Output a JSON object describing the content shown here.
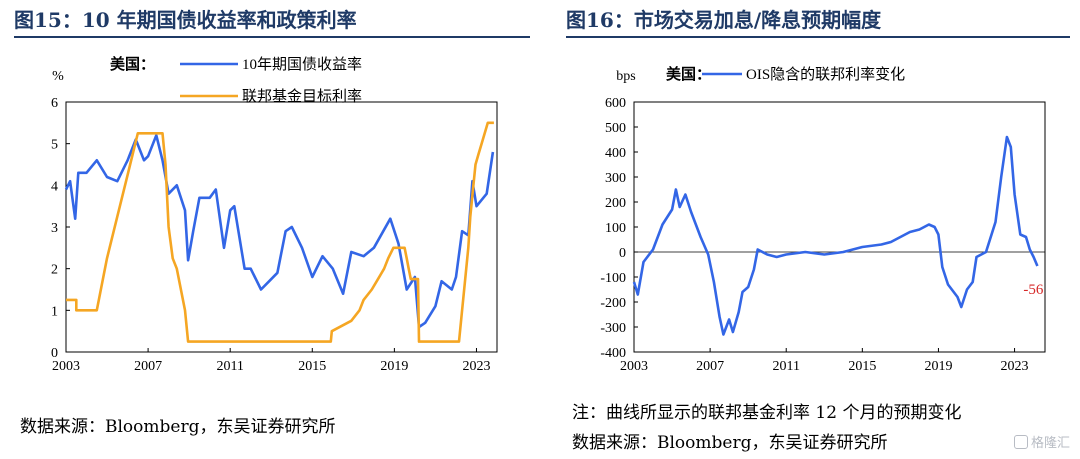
{
  "left": {
    "figure_title": "图15：10 年期国债收益率和政策利率",
    "source": "数据来源：Bloomberg，东吴证券研究所"
  },
  "right": {
    "figure_title": "图16：市场交易加息/降息预期幅度",
    "note": "注：曲线所显示的联邦基金利率 12 个月的预期变化",
    "source": "数据来源：Bloomberg，东吴证券研究所"
  },
  "watermark": "格隆汇",
  "chart_data": [
    {
      "type": "line",
      "ylabel": "%",
      "legend_prefix": "美国：",
      "legend_position": "top",
      "ylim": [
        0,
        6
      ],
      "yticks": [
        "0",
        "1",
        "2",
        "3",
        "4",
        "5",
        "6"
      ],
      "xlim": [
        2003,
        2024
      ],
      "xticks": [
        "2003",
        "2007",
        "2011",
        "2015",
        "2019",
        "2023"
      ],
      "grid": false,
      "series": [
        {
          "name": "10年期国债收益率",
          "color": "#3366e6",
          "points": [
            [
              2003.0,
              3.9
            ],
            [
              2003.2,
              4.1
            ],
            [
              2003.45,
              3.2
            ],
            [
              2003.6,
              4.3
            ],
            [
              2004.0,
              4.3
            ],
            [
              2004.5,
              4.6
            ],
            [
              2005.0,
              4.2
            ],
            [
              2005.5,
              4.1
            ],
            [
              2006.0,
              4.6
            ],
            [
              2006.4,
              5.1
            ],
            [
              2006.8,
              4.6
            ],
            [
              2007.0,
              4.7
            ],
            [
              2007.4,
              5.2
            ],
            [
              2007.7,
              4.6
            ],
            [
              2008.0,
              3.8
            ],
            [
              2008.4,
              4.0
            ],
            [
              2008.8,
              3.4
            ],
            [
              2008.95,
              2.2
            ],
            [
              2009.2,
              2.9
            ],
            [
              2009.5,
              3.7
            ],
            [
              2010.0,
              3.7
            ],
            [
              2010.3,
              3.9
            ],
            [
              2010.7,
              2.5
            ],
            [
              2011.0,
              3.4
            ],
            [
              2011.2,
              3.5
            ],
            [
              2011.7,
              2.0
            ],
            [
              2012.0,
              2.0
            ],
            [
              2012.5,
              1.5
            ],
            [
              2012.9,
              1.7
            ],
            [
              2013.3,
              1.9
            ],
            [
              2013.7,
              2.9
            ],
            [
              2014.0,
              3.0
            ],
            [
              2014.5,
              2.5
            ],
            [
              2015.0,
              1.8
            ],
            [
              2015.5,
              2.3
            ],
            [
              2016.0,
              2.0
            ],
            [
              2016.5,
              1.4
            ],
            [
              2016.9,
              2.4
            ],
            [
              2017.5,
              2.3
            ],
            [
              2018.0,
              2.5
            ],
            [
              2018.8,
              3.2
            ],
            [
              2019.2,
              2.6
            ],
            [
              2019.6,
              1.5
            ],
            [
              2020.0,
              1.8
            ],
            [
              2020.2,
              0.6
            ],
            [
              2020.5,
              0.7
            ],
            [
              2021.0,
              1.1
            ],
            [
              2021.3,
              1.7
            ],
            [
              2021.8,
              1.5
            ],
            [
              2022.0,
              1.8
            ],
            [
              2022.3,
              2.9
            ],
            [
              2022.6,
              2.8
            ],
            [
              2022.8,
              4.1
            ],
            [
              2023.0,
              3.5
            ],
            [
              2023.5,
              3.8
            ],
            [
              2023.8,
              4.8
            ]
          ]
        },
        {
          "name": "联邦基金目标利率",
          "color": "#f5a623",
          "points": [
            [
              2003.0,
              1.25
            ],
            [
              2003.5,
              1.25
            ],
            [
              2003.5,
              1.0
            ],
            [
              2004.5,
              1.0
            ],
            [
              2005.0,
              2.25
            ],
            [
              2005.5,
              3.25
            ],
            [
              2006.0,
              4.25
            ],
            [
              2006.5,
              5.25
            ],
            [
              2007.7,
              5.25
            ],
            [
              2007.85,
              4.5
            ],
            [
              2008.0,
              3.0
            ],
            [
              2008.2,
              2.25
            ],
            [
              2008.4,
              2.0
            ],
            [
              2008.8,
              1.0
            ],
            [
              2008.95,
              0.25
            ],
            [
              2015.9,
              0.25
            ],
            [
              2015.95,
              0.5
            ],
            [
              2016.9,
              0.75
            ],
            [
              2017.3,
              1.0
            ],
            [
              2017.5,
              1.25
            ],
            [
              2017.9,
              1.5
            ],
            [
              2018.2,
              1.75
            ],
            [
              2018.5,
              2.0
            ],
            [
              2018.7,
              2.25
            ],
            [
              2018.95,
              2.5
            ],
            [
              2019.5,
              2.5
            ],
            [
              2019.6,
              2.25
            ],
            [
              2019.7,
              2.0
            ],
            [
              2019.8,
              1.75
            ],
            [
              2020.15,
              1.75
            ],
            [
              2020.2,
              0.25
            ],
            [
              2022.15,
              0.25
            ],
            [
              2022.3,
              1.0
            ],
            [
              2022.45,
              1.75
            ],
            [
              2022.6,
              2.5
            ],
            [
              2022.7,
              3.25
            ],
            [
              2022.85,
              4.0
            ],
            [
              2022.95,
              4.5
            ],
            [
              2023.1,
              4.75
            ],
            [
              2023.25,
              5.0
            ],
            [
              2023.4,
              5.25
            ],
            [
              2023.55,
              5.5
            ],
            [
              2023.85,
              5.5
            ]
          ]
        }
      ]
    },
    {
      "type": "line",
      "ylabel": "bps",
      "legend_prefix": "美国：",
      "legend_position": "top",
      "ylim": [
        -400,
        600
      ],
      "yticks": [
        "600",
        "500",
        "400",
        "300",
        "200",
        "100",
        "0",
        "-100",
        "-200",
        "-300",
        "-400"
      ],
      "xlim": [
        2003,
        2024.6
      ],
      "xticks": [
        "2003",
        "2007",
        "2011",
        "2015",
        "2019",
        "2023"
      ],
      "grid": false,
      "series": [
        {
          "name": "OIS隐含的联邦利率变化",
          "color": "#3366e6",
          "points": [
            [
              2003.0,
              -120
            ],
            [
              2003.2,
              -170
            ],
            [
              2003.5,
              -40
            ],
            [
              2004.0,
              10
            ],
            [
              2004.5,
              110
            ],
            [
              2005.0,
              170
            ],
            [
              2005.2,
              250
            ],
            [
              2005.4,
              180
            ],
            [
              2005.7,
              230
            ],
            [
              2006.0,
              160
            ],
            [
              2006.5,
              60
            ],
            [
              2006.9,
              -10
            ],
            [
              2007.2,
              -120
            ],
            [
              2007.5,
              -260
            ],
            [
              2007.7,
              -330
            ],
            [
              2008.0,
              -270
            ],
            [
              2008.2,
              -320
            ],
            [
              2008.5,
              -240
            ],
            [
              2008.7,
              -160
            ],
            [
              2009.0,
              -140
            ],
            [
              2009.3,
              -70
            ],
            [
              2009.5,
              10
            ],
            [
              2010.0,
              -10
            ],
            [
              2010.5,
              -20
            ],
            [
              2011.0,
              -10
            ],
            [
              2012.0,
              0
            ],
            [
              2013.0,
              -10
            ],
            [
              2014.0,
              0
            ],
            [
              2015.0,
              20
            ],
            [
              2016.0,
              30
            ],
            [
              2016.5,
              40
            ],
            [
              2017.0,
              60
            ],
            [
              2017.5,
              80
            ],
            [
              2018.0,
              90
            ],
            [
              2018.5,
              110
            ],
            [
              2018.8,
              100
            ],
            [
              2019.0,
              70
            ],
            [
              2019.2,
              -60
            ],
            [
              2019.5,
              -130
            ],
            [
              2019.8,
              -160
            ],
            [
              2020.0,
              -180
            ],
            [
              2020.2,
              -220
            ],
            [
              2020.5,
              -150
            ],
            [
              2020.8,
              -120
            ],
            [
              2021.0,
              -20
            ],
            [
              2021.5,
              0
            ],
            [
              2022.0,
              120
            ],
            [
              2022.3,
              300
            ],
            [
              2022.6,
              460
            ],
            [
              2022.8,
              420
            ],
            [
              2023.0,
              230
            ],
            [
              2023.3,
              70
            ],
            [
              2023.6,
              60
            ],
            [
              2023.8,
              10
            ],
            [
              2024.0,
              -20
            ],
            [
              2024.2,
              -56
            ]
          ]
        }
      ],
      "annotations": [
        {
          "text": "-56",
          "color": "#d62828"
        }
      ]
    }
  ]
}
